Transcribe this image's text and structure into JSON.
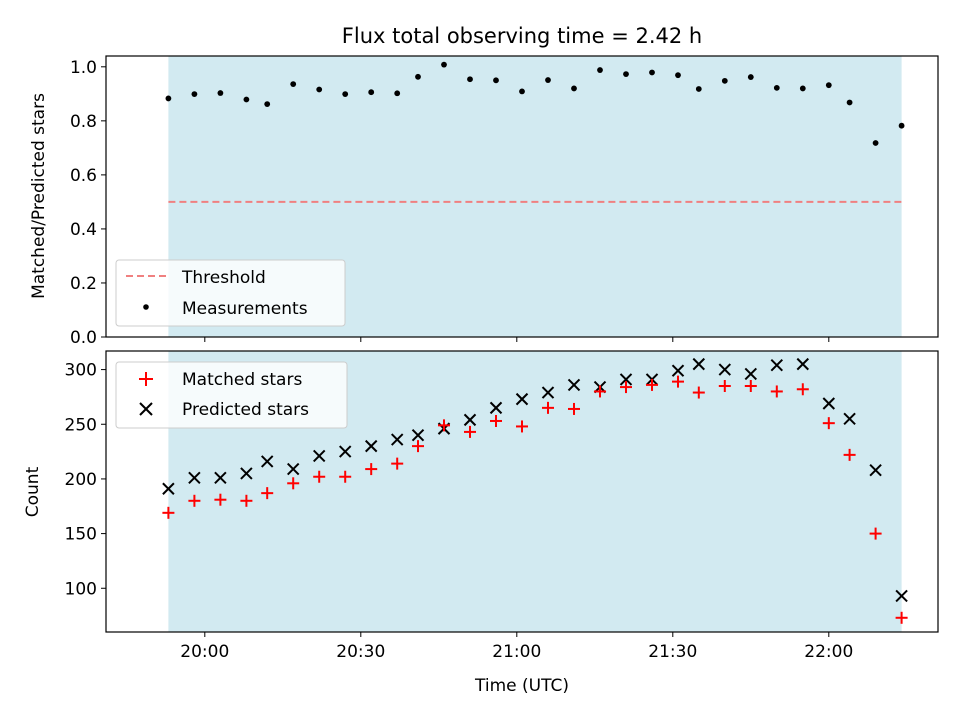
{
  "title": "Flux total observing time = 2.42 h",
  "colors": {
    "band": "#add8e6",
    "threshold": "#f08080",
    "measurements": "#000000",
    "matched": "#ff0000",
    "predicted": "#000000"
  },
  "chart_data": [
    {
      "type": "scatter",
      "ylabel": "Matched/Predicted stars",
      "ylim": [
        0.0,
        1.04
      ],
      "yticks": [
        "0.0",
        "0.2",
        "0.4",
        "0.6",
        "0.8",
        "1.0"
      ],
      "ytick_values": [
        0.0,
        0.2,
        0.4,
        0.6,
        0.8,
        1.0
      ],
      "xlim": [
        "19:41",
        "22:21"
      ],
      "shaded_span": [
        "19:53",
        "22:14"
      ],
      "threshold": 0.5,
      "legend": {
        "placement": "lower-left",
        "entries": [
          "Threshold",
          "Measurements"
        ]
      },
      "series": [
        {
          "name": "Measurements",
          "marker": "dot",
          "x": [
            "19:53",
            "19:58",
            "20:03",
            "20:08",
            "20:12",
            "20:17",
            "20:22",
            "20:27",
            "20:32",
            "20:37",
            "20:41",
            "20:46",
            "20:51",
            "20:56",
            "21:01",
            "21:06",
            "21:11",
            "21:16",
            "21:21",
            "21:26",
            "21:31",
            "21:35",
            "21:40",
            "21:45",
            "21:50",
            "21:55",
            "22:00",
            "22:04",
            "22:09",
            "22:14"
          ],
          "y": [
            0.883,
            0.899,
            0.903,
            0.879,
            0.862,
            0.936,
            0.916,
            0.899,
            0.906,
            0.902,
            0.963,
            1.008,
            0.954,
            0.95,
            0.909,
            0.951,
            0.92,
            0.988,
            0.973,
            0.979,
            0.969,
            0.918,
            0.948,
            0.962,
            0.922,
            0.92,
            0.932,
            0.868,
            0.718,
            0.782
          ]
        }
      ]
    },
    {
      "type": "scatter",
      "ylabel": "Count",
      "xlabel": "Time (UTC)",
      "ylim": [
        60,
        317
      ],
      "yticks": [
        "100",
        "150",
        "200",
        "250",
        "300"
      ],
      "ytick_values": [
        100,
        150,
        200,
        250,
        300
      ],
      "xlim": [
        "19:41",
        "22:21"
      ],
      "xticks": [
        "20:00",
        "20:30",
        "21:00",
        "21:30",
        "22:00"
      ],
      "shaded_span": [
        "19:53",
        "22:14"
      ],
      "legend": {
        "placement": "upper-left",
        "entries": [
          "Matched stars",
          "Predicted stars"
        ]
      },
      "series": [
        {
          "name": "Matched stars",
          "marker": "plus",
          "x": [
            "19:53",
            "19:58",
            "20:03",
            "20:08",
            "20:12",
            "20:17",
            "20:22",
            "20:27",
            "20:32",
            "20:37",
            "20:41",
            "20:46",
            "20:51",
            "20:56",
            "21:01",
            "21:06",
            "21:11",
            "21:16",
            "21:21",
            "21:26",
            "21:31",
            "21:35",
            "21:40",
            "21:45",
            "21:50",
            "21:55",
            "22:00",
            "22:04",
            "22:09",
            "22:14"
          ],
          "y": [
            169,
            180,
            181,
            180,
            187,
            196,
            202,
            202,
            209,
            214,
            230,
            249,
            243,
            253,
            248,
            265,
            264,
            280,
            284,
            286,
            289,
            279,
            285,
            285,
            280,
            282,
            251,
            222,
            150,
            73
          ]
        },
        {
          "name": "Predicted stars",
          "marker": "x",
          "x": [
            "19:53",
            "19:58",
            "20:03",
            "20:08",
            "20:12",
            "20:17",
            "20:22",
            "20:27",
            "20:32",
            "20:37",
            "20:41",
            "20:46",
            "20:51",
            "20:56",
            "21:01",
            "21:06",
            "21:11",
            "21:16",
            "21:21",
            "21:26",
            "21:31",
            "21:35",
            "21:40",
            "21:45",
            "21:50",
            "21:55",
            "22:00",
            "22:04",
            "22:09",
            "22:14"
          ],
          "y": [
            191,
            201,
            201,
            205,
            216,
            209,
            221,
            225,
            230,
            236,
            240,
            246,
            254,
            265,
            273,
            279,
            286,
            284,
            291,
            291,
            299,
            305,
            300,
            296,
            304,
            305,
            269,
            255,
            208,
            93
          ]
        }
      ]
    }
  ]
}
